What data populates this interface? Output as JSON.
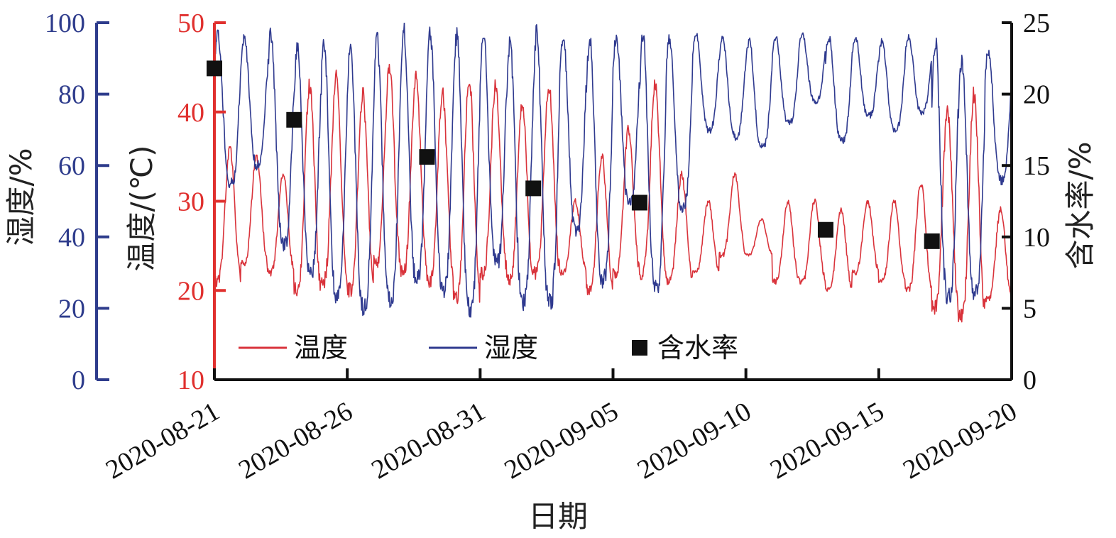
{
  "chart_data": {
    "type": "line",
    "title": "",
    "xlabel": "日期",
    "x_ticks": [
      "2020-08-21",
      "2020-08-26",
      "2020-08-31",
      "2020-09-05",
      "2020-09-10",
      "2020-09-15",
      "2020-09-20"
    ],
    "x_range": [
      "2020-08-21",
      "2020-09-20"
    ],
    "axes": {
      "humidity": {
        "label": "湿度/%",
        "range": [
          0,
          100
        ],
        "ticks": [
          "0",
          "20",
          "40",
          "60",
          "80",
          "100"
        ],
        "color": "#2e3c8c"
      },
      "temperature": {
        "label": "温度/(℃)",
        "range": [
          10,
          50
        ],
        "ticks": [
          "10",
          "20",
          "30",
          "40",
          "50"
        ],
        "color": "#e0302e"
      },
      "moisture": {
        "label": "含水率/%",
        "range": [
          0,
          25
        ],
        "ticks": [
          "0",
          "5",
          "10",
          "15",
          "20",
          "25"
        ],
        "color": "#111111"
      }
    },
    "series": [
      {
        "name": "温度",
        "axis": "temperature",
        "color": "#d9333b",
        "daily_min": [
          21,
          23,
          22,
          20,
          21,
          20,
          23,
          22,
          21,
          19,
          22,
          21,
          22,
          22,
          20,
          22,
          22,
          21,
          22,
          24,
          24,
          21,
          21,
          20,
          22,
          21,
          20,
          18,
          17,
          19
        ],
        "daily_max": [
          36,
          35,
          33,
          43,
          44,
          42,
          45,
          44,
          42,
          44,
          43,
          41,
          43,
          30,
          35,
          38,
          43,
          33,
          30,
          33,
          28,
          30,
          30,
          29,
          30,
          30,
          32,
          40,
          42,
          29
        ]
      },
      {
        "name": "湿度",
        "axis": "humidity",
        "color": "#2f3a8f",
        "daily_min": [
          55,
          60,
          38,
          30,
          23,
          20,
          22,
          28,
          25,
          20,
          33,
          22,
          22,
          42,
          28,
          50,
          26,
          48,
          70,
          68,
          65,
          72,
          78,
          67,
          74,
          70,
          75,
          23,
          24,
          56
        ],
        "daily_max": [
          97,
          96,
          97,
          94,
          94,
          93,
          95,
          98,
          97,
          96,
          97,
          95,
          97,
          97,
          95,
          96,
          97,
          96,
          97,
          96,
          95,
          96,
          97,
          96,
          96,
          95,
          96,
          95,
          90,
          92
        ]
      },
      {
        "name": "含水率",
        "axis": "moisture",
        "type": "scatter",
        "marker": "square",
        "color": "#111111",
        "x": [
          "2020-08-21",
          "2020-08-24",
          "2020-08-29",
          "2020-09-02",
          "2020-09-06",
          "2020-09-13",
          "2020-09-17"
        ],
        "y": [
          21.8,
          18.2,
          15.6,
          13.4,
          12.4,
          10.5,
          9.7
        ]
      }
    ],
    "legend": {
      "position": "bottom-left",
      "items": [
        "温度",
        "湿度",
        "含水率"
      ]
    },
    "grid": false
  }
}
